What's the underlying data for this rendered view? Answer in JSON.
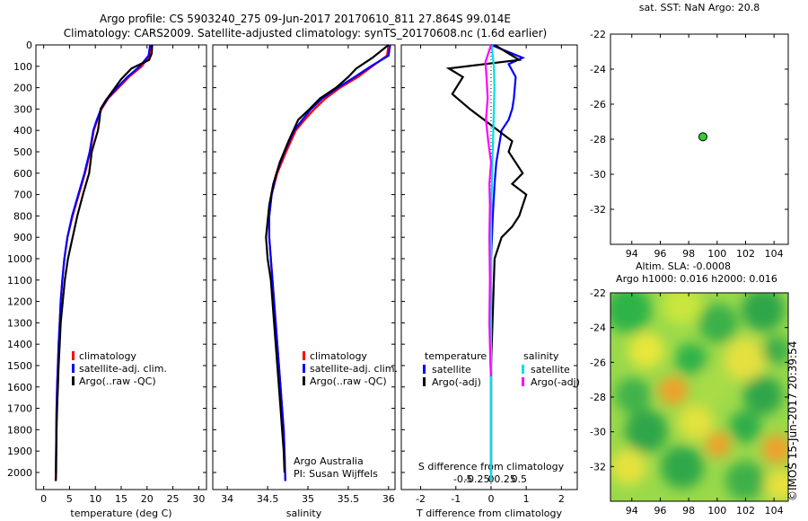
{
  "header": {
    "line1": "Argo profile: CS 5903240_275 09-Jun-2017 20170610_811 27.864S 99.014E",
    "line2": "Climatology: CARS2009. Satellite-adjusted climatology: synTS_20170608.nc (1.6d earlier)"
  },
  "side_text": "©IMOS 15-Jun-2017 20:39:54",
  "colors": {
    "climatology": "#ff0000",
    "satellite": "#0000ff",
    "argo": "#000000",
    "salinity_satellite": "#00e0e0",
    "salinity_argo": "#ff00ff",
    "marker": "#33cc33"
  },
  "chart_data": [
    {
      "type": "line",
      "id": "temperature",
      "xlabel": "temperature (deg C)",
      "ylim": [
        2080,
        0
      ],
      "xlim": [
        -1.5,
        31.5
      ],
      "xticks": [
        "0",
        "5",
        "10",
        "15",
        "20",
        "25",
        "30"
      ],
      "xtick_values": [
        0,
        5,
        10,
        15,
        20,
        25,
        30
      ],
      "yticks": [
        "0",
        "100",
        "200",
        "300",
        "400",
        "500",
        "600",
        "700",
        "800",
        "900",
        "1000",
        "1100",
        "1200",
        "1300",
        "1400",
        "1500",
        "1600",
        "1700",
        "1800",
        "1900",
        "2000"
      ],
      "ytick_values": [
        0,
        100,
        200,
        300,
        400,
        500,
        600,
        700,
        800,
        900,
        1000,
        1100,
        1200,
        1300,
        1400,
        1500,
        1600,
        1700,
        1800,
        1900,
        2000
      ],
      "legend": [
        "climatology",
        "satellite-adj. clim.",
        "Argo(..raw -QC)"
      ],
      "series": [
        {
          "name": "climatology",
          "color": "#ff0000",
          "x": [
            20.8,
            20.5,
            19.0,
            16.5,
            14.5,
            12.5,
            11.2,
            10.4,
            9.7,
            9.0,
            8.0,
            6.8,
            5.6,
            4.6,
            4.0,
            3.6,
            3.3,
            3.1,
            2.9,
            2.75,
            2.6,
            2.5,
            2.45,
            2.4,
            2.35,
            2.3
          ],
          "y": [
            0,
            50,
            100,
            150,
            200,
            250,
            300,
            350,
            400,
            500,
            600,
            700,
            800,
            900,
            1000,
            1100,
            1200,
            1300,
            1400,
            1500,
            1600,
            1700,
            1800,
            1900,
            2000,
            2040
          ]
        },
        {
          "name": "satellite-adj. clim.",
          "color": "#0000ff",
          "x": [
            20.6,
            20.3,
            18.6,
            16.2,
            14.2,
            12.4,
            11.1,
            10.3,
            9.6,
            8.9,
            7.9,
            6.7,
            5.5,
            4.6,
            4.0,
            3.6,
            3.3,
            3.1,
            2.9,
            2.75,
            2.6,
            2.5,
            2.45,
            2.4,
            2.35
          ],
          "y": [
            0,
            50,
            100,
            150,
            200,
            250,
            300,
            350,
            400,
            500,
            600,
            700,
            800,
            900,
            1000,
            1100,
            1200,
            1300,
            1400,
            1500,
            1600,
            1700,
            1800,
            1900,
            2000
          ]
        },
        {
          "name": "Argo(..raw -QC)",
          "color": "#000000",
          "x": [
            21.0,
            20.9,
            20.4,
            17.0,
            15.0,
            13.5,
            12.0,
            11.0,
            10.8,
            10.5,
            9.3,
            8.8,
            7.6,
            6.5,
            5.6,
            4.7,
            4.1,
            3.7,
            3.3,
            3.1,
            2.9,
            2.75,
            2.6,
            2.5,
            2.45,
            2.4,
            2.35
          ],
          "y": [
            0,
            40,
            70,
            110,
            160,
            210,
            260,
            300,
            350,
            400,
            500,
            600,
            700,
            800,
            900,
            1000,
            1100,
            1200,
            1300,
            1400,
            1500,
            1600,
            1700,
            1800,
            1900,
            2000,
            2040
          ]
        }
      ]
    },
    {
      "type": "line",
      "id": "salinity",
      "xlabel": "salinity",
      "ylim": [
        2080,
        0
      ],
      "xlim": [
        33.82,
        36.08
      ],
      "xticks": [
        "34",
        "34.5",
        "35",
        "35.5",
        "36"
      ],
      "xtick_values": [
        34,
        34.5,
        35,
        35.5,
        36
      ],
      "legend": [
        "climatology",
        "satellite-adj. clim.",
        "Argo(..raw -QC)"
      ],
      "annotation": [
        "Argo Australia",
        "PI: Susan Wijffels"
      ],
      "series": [
        {
          "name": "climatology",
          "color": "#ff0000",
          "x": [
            36.0,
            35.98,
            35.8,
            35.62,
            35.4,
            35.22,
            35.08,
            34.96,
            34.85,
            34.73,
            34.62,
            34.55,
            34.52,
            34.52,
            34.54,
            34.56,
            34.58,
            34.6,
            34.62,
            34.64,
            34.66,
            34.68,
            34.7,
            34.71,
            34.72
          ],
          "y": [
            0,
            50,
            100,
            150,
            200,
            250,
            300,
            350,
            400,
            500,
            600,
            700,
            800,
            900,
            1000,
            1100,
            1200,
            1300,
            1400,
            1500,
            1600,
            1700,
            1800,
            1900,
            2040
          ]
        },
        {
          "name": "satellite-adj. clim.",
          "color": "#0000ff",
          "x": [
            36.02,
            36.0,
            35.78,
            35.58,
            35.37,
            35.18,
            35.04,
            34.93,
            34.83,
            34.71,
            34.61,
            34.55,
            34.52,
            34.52,
            34.54,
            34.56,
            34.58,
            34.6,
            34.62,
            34.64,
            34.66,
            34.68,
            34.7,
            34.71,
            34.72
          ],
          "y": [
            0,
            50,
            100,
            150,
            200,
            250,
            300,
            350,
            400,
            500,
            600,
            700,
            800,
            900,
            1000,
            1100,
            1200,
            1300,
            1400,
            1500,
            1600,
            1700,
            1800,
            1900,
            2040
          ]
        },
        {
          "name": "Argo(..raw -QC)",
          "color": "#000000",
          "x": [
            36.0,
            35.8,
            35.6,
            35.5,
            35.35,
            35.15,
            35.02,
            34.88,
            34.76,
            34.65,
            34.57,
            34.52,
            34.48,
            34.5,
            34.54,
            34.56,
            34.58,
            34.6,
            34.62,
            34.64,
            34.66,
            34.68,
            34.7,
            34.71
          ],
          "y": [
            0,
            60,
            110,
            150,
            200,
            250,
            300,
            350,
            450,
            550,
            650,
            750,
            900,
            1000,
            1100,
            1200,
            1300,
            1400,
            1500,
            1600,
            1700,
            1800,
            1900,
            2000
          ]
        }
      ]
    },
    {
      "type": "line",
      "id": "differences",
      "xlabel": "T difference from climatology",
      "xlabel_top": "S difference from climatology",
      "ylim": [
        2080,
        0
      ],
      "xlim": [
        -2.55,
        2.45
      ],
      "xticks": [
        "-2",
        "-1",
        "0",
        "1",
        "2"
      ],
      "xtick_values": [
        -2,
        -1,
        0,
        1,
        2
      ],
      "sticks": [
        "-0.5",
        "-0.25",
        "0",
        "0.25",
        "0.5"
      ],
      "stick_values": [
        -0.5,
        -0.25,
        0,
        0.25,
        0.5
      ],
      "legend_titles": [
        "temperature",
        "salinity"
      ],
      "legend": [
        "satellite",
        "Argo(-adj)",
        "satellite",
        "Argo(-adj)"
      ],
      "series": [
        {
          "name": "satellite",
          "group": "temperature",
          "color": "#0000ff",
          "x": [
            0.0,
            0.9,
            0.5,
            0.7,
            0.65,
            0.6,
            0.5,
            0.3,
            0.15,
            0.1,
            0.05,
            0.0,
            0.0,
            0.0,
            0.0,
            0.0,
            0.0,
            0.0,
            0.0
          ],
          "y": [
            0,
            60,
            90,
            150,
            250,
            300,
            350,
            400,
            550,
            650,
            800,
            1000,
            1200,
            1400,
            1600,
            1800,
            1900,
            2000,
            2040
          ]
        },
        {
          "name": "Argo(-adj)",
          "group": "temperature",
          "color": "#000000",
          "x": [
            0.1,
            0.8,
            -1.2,
            -0.8,
            -1.1,
            -0.6,
            -0.2,
            0.2,
            0.6,
            0.5,
            0.9,
            0.6,
            1.0,
            0.8,
            0.6,
            0.3,
            0.1,
            0.0,
            0.0
          ],
          "y": [
            0,
            70,
            110,
            150,
            230,
            300,
            350,
            400,
            450,
            500,
            600,
            650,
            700,
            800,
            850,
            900,
            1000,
            1500,
            2000
          ]
        },
        {
          "name": "satellite",
          "group": "salinity",
          "color": "#00e0e0",
          "x": [
            0.01,
            0.05,
            0.06,
            0.05,
            0.04,
            0.03,
            0.02,
            0.01,
            0.0,
            0.0,
            0.0,
            0.0
          ],
          "y": [
            0,
            100,
            200,
            300,
            400,
            500,
            600,
            700,
            800,
            1200,
            1600,
            2040
          ]
        },
        {
          "name": "Argo(-adj)",
          "group": "salinity",
          "color": "#ff00ff",
          "x": [
            0.0,
            -0.1,
            -0.08,
            -0.06,
            -0.09,
            -0.05,
            0.0,
            -0.03,
            -0.02,
            -0.03,
            -0.02,
            -0.03,
            -0.02,
            -0.01,
            0.0
          ],
          "y": [
            0,
            80,
            150,
            250,
            350,
            450,
            550,
            650,
            750,
            900,
            1100,
            1300,
            1400,
            1500,
            1550
          ]
        }
      ]
    },
    {
      "type": "scatter",
      "id": "sst_map",
      "title": "sat. SST: NaN Argo: 20.8",
      "xlim": [
        92.5,
        105
      ],
      "ylim": [
        -34,
        -22
      ],
      "xticks": [
        "94",
        "96",
        "98",
        "100",
        "102",
        "104"
      ],
      "xtick_values": [
        94,
        96,
        98,
        100,
        102,
        104
      ],
      "yticks": [
        "-22",
        "-24",
        "-26",
        "-28",
        "-30",
        "-32"
      ],
      "ytick_values": [
        -22,
        -24,
        -26,
        -28,
        -30,
        -32
      ],
      "points": [
        {
          "x": 99.0,
          "y": -27.86
        }
      ]
    },
    {
      "type": "heatmap",
      "id": "sla_map",
      "title": [
        "Altim. SLA: -0.0008",
        "Argo h1000: 0.016 h2000: 0.016"
      ],
      "xlim": [
        92.5,
        105
      ],
      "ylim": [
        -34,
        -22
      ],
      "xticks": [
        "94",
        "96",
        "98",
        "100",
        "102",
        "104"
      ],
      "xtick_values": [
        94,
        96,
        98,
        100,
        102,
        104
      ],
      "yticks": [
        "-22",
        "-24",
        "-26",
        "-28",
        "-30",
        "-32"
      ],
      "ytick_values": [
        -22,
        -24,
        -26,
        -28,
        -30,
        -32
      ]
    }
  ]
}
